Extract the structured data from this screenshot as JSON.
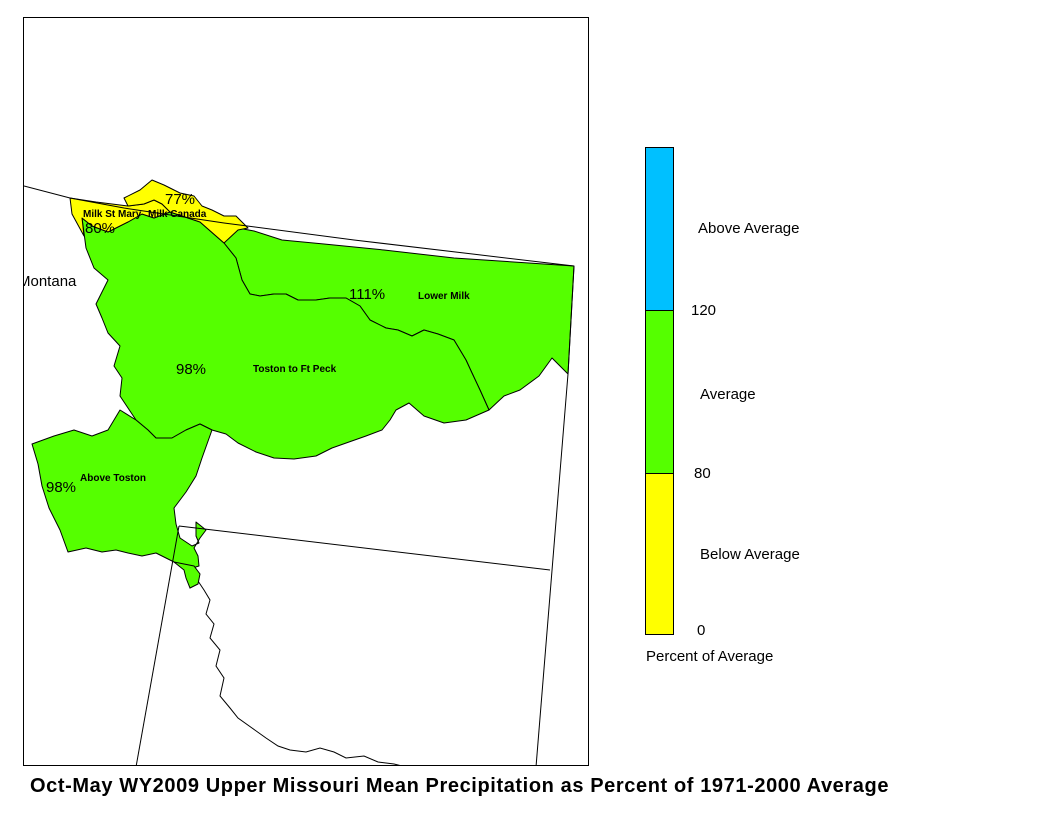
{
  "title": "Oct-May WY2009 Upper Missouri Mean Precipitation as Percent of 1971-2000 Average",
  "map": {
    "state_label": "Montana",
    "basins": [
      {
        "name": "Milk St Mary",
        "percent": "80%",
        "category": "Below Average"
      },
      {
        "name": "Milk Canada",
        "percent": "77%",
        "category": "Below Average"
      },
      {
        "name": "Lower Milk",
        "percent": "111%",
        "category": "Average"
      },
      {
        "name": "Toston to Ft Peck",
        "percent": "98%",
        "category": "Average"
      },
      {
        "name": "Above Toston",
        "percent": "98%",
        "category": "Average"
      }
    ]
  },
  "legend": {
    "title": "Percent of Average",
    "classes": [
      {
        "label": "Above Average",
        "color": "#00c0ff"
      },
      {
        "label": "Average",
        "color": "#55ff00"
      },
      {
        "label": "Below Average",
        "color": "#ffff00"
      }
    ],
    "breaks": [
      "120",
      "80",
      "0"
    ]
  }
}
